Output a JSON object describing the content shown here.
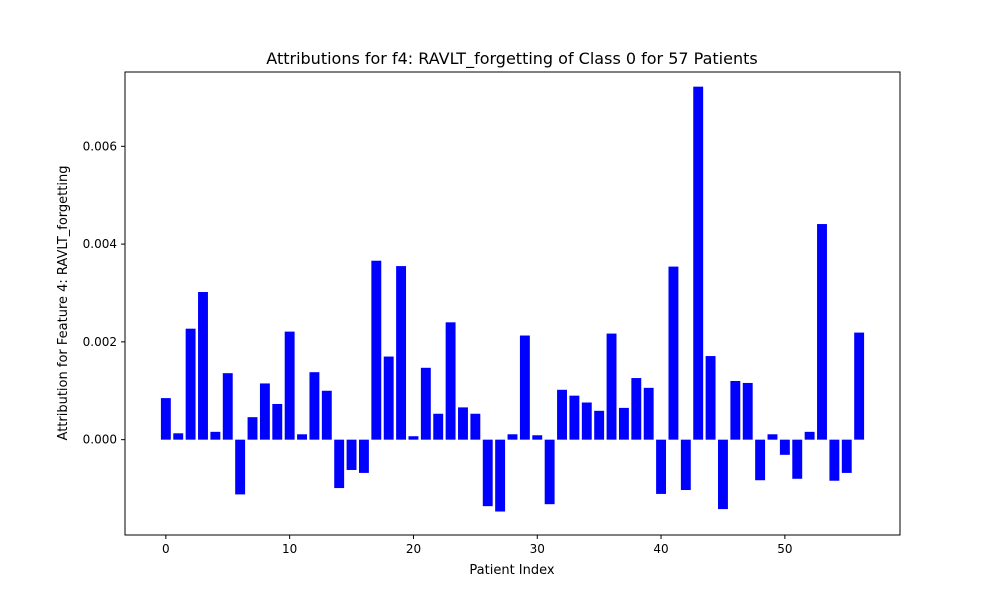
{
  "chart_data": {
    "type": "bar",
    "title": "Attributions for f4: RAVLT_forgetting of Class 0 for 57 Patients",
    "xlabel": "Patient Index",
    "ylabel": "Attribution for Feature 4: RAVLT_forgetting",
    "bar_color": "#0000ff",
    "xlim": [
      -3.3,
      59.3
    ],
    "ylim": [
      -0.00195,
      0.00752
    ],
    "x_ticks": [
      0,
      10,
      20,
      30,
      40,
      50
    ],
    "x_tick_labels": [
      "0",
      "10",
      "20",
      "30",
      "40",
      "50"
    ],
    "y_ticks": [
      0.0,
      0.002,
      0.004,
      0.006
    ],
    "y_tick_labels": [
      "0.000",
      "0.002",
      "0.004",
      "0.006"
    ],
    "grid": false,
    "x": [
      0,
      1,
      2,
      3,
      4,
      5,
      6,
      7,
      8,
      9,
      10,
      11,
      12,
      13,
      14,
      15,
      16,
      17,
      18,
      19,
      20,
      21,
      22,
      23,
      24,
      25,
      26,
      27,
      28,
      29,
      30,
      31,
      32,
      33,
      34,
      35,
      36,
      37,
      38,
      39,
      40,
      41,
      42,
      43,
      44,
      45,
      46,
      47,
      48,
      49,
      50,
      51,
      52,
      53,
      54,
      55,
      56
    ],
    "values": [
      0.00085,
      0.00013,
      0.00227,
      0.00302,
      0.00016,
      0.00136,
      -0.00112,
      0.00046,
      0.00115,
      0.00073,
      0.00221,
      0.00011,
      0.00138,
      0.001,
      -0.00099,
      -0.00062,
      -0.00068,
      0.00366,
      0.0017,
      0.00355,
      7e-05,
      0.00147,
      0.00053,
      0.0024,
      0.00066,
      0.00053,
      -0.00136,
      -0.00147,
      0.00011,
      0.00213,
      9e-05,
      -0.00132,
      0.00102,
      0.0009,
      0.00076,
      0.00059,
      0.00217,
      0.00065,
      0.00126,
      0.00106,
      -0.00111,
      0.00354,
      -0.00103,
      0.00722,
      0.00171,
      -0.00142,
      0.0012,
      0.00116,
      -0.00083,
      0.00011,
      -0.00031,
      -0.0008,
      0.00016,
      0.00441,
      -0.00084,
      -0.00068,
      0.00219
    ]
  }
}
